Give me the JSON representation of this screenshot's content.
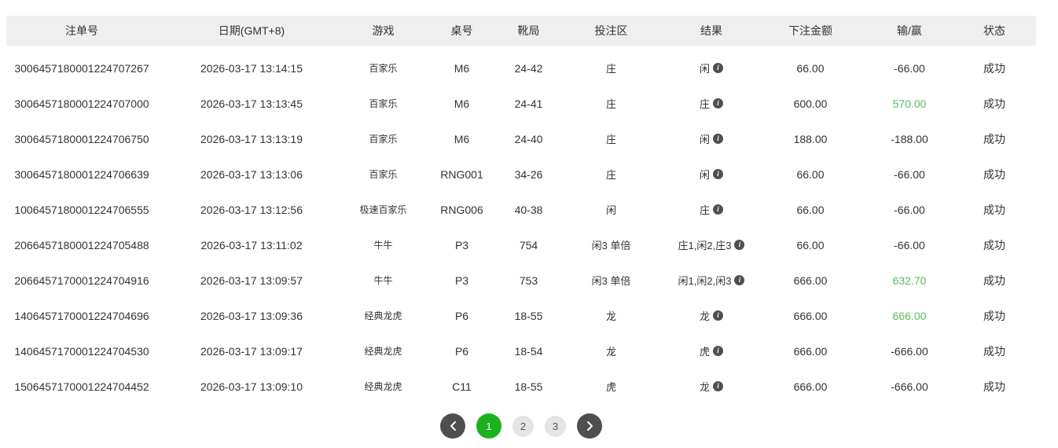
{
  "table": {
    "headers": [
      "注单号",
      "日期(GMT+8)",
      "游戏",
      "桌号",
      "靴局",
      "投注区",
      "结果",
      "下注金额",
      "输/赢",
      "状态"
    ],
    "rows": [
      {
        "id": "3006457180001224707267",
        "date": "2026-03-17 13:14:15",
        "game": "百家乐",
        "table": "M6",
        "shoe": "24-42",
        "zone": "庄",
        "result": "闲",
        "amount": "66.00",
        "winloss": "-66.00",
        "win": false,
        "status": "成功"
      },
      {
        "id": "3006457180001224707000",
        "date": "2026-03-17 13:13:45",
        "game": "百家乐",
        "table": "M6",
        "shoe": "24-41",
        "zone": "庄",
        "result": "庄",
        "amount": "600.00",
        "winloss": "570.00",
        "win": true,
        "status": "成功"
      },
      {
        "id": "3006457180001224706750",
        "date": "2026-03-17 13:13:19",
        "game": "百家乐",
        "table": "M6",
        "shoe": "24-40",
        "zone": "庄",
        "result": "闲",
        "amount": "188.00",
        "winloss": "-188.00",
        "win": false,
        "status": "成功"
      },
      {
        "id": "3006457180001224706639",
        "date": "2026-03-17 13:13:06",
        "game": "百家乐",
        "table": "RNG001",
        "shoe": "34-26",
        "zone": "庄",
        "result": "闲",
        "amount": "66.00",
        "winloss": "-66.00",
        "win": false,
        "status": "成功"
      },
      {
        "id": "1006457180001224706555",
        "date": "2026-03-17 13:12:56",
        "game": "极速百家乐",
        "table": "RNG006",
        "shoe": "40-38",
        "zone": "闲",
        "result": "庄",
        "amount": "66.00",
        "winloss": "-66.00",
        "win": false,
        "status": "成功"
      },
      {
        "id": "2066457180001224705488",
        "date": "2026-03-17 13:11:02",
        "game": "牛牛",
        "table": "P3",
        "shoe": "754",
        "zone": "闲3 单倍",
        "result": "庄1,闲2,庄3",
        "amount": "66.00",
        "winloss": "-66.00",
        "win": false,
        "status": "成功"
      },
      {
        "id": "2066457170001224704916",
        "date": "2026-03-17 13:09:57",
        "game": "牛牛",
        "table": "P3",
        "shoe": "753",
        "zone": "闲3 单倍",
        "result": "闲1,闲2,闲3",
        "amount": "666.00",
        "winloss": "632.70",
        "win": true,
        "status": "成功"
      },
      {
        "id": "1406457170001224704696",
        "date": "2026-03-17 13:09:36",
        "game": "经典龙虎",
        "table": "P6",
        "shoe": "18-55",
        "zone": "龙",
        "result": "龙",
        "amount": "666.00",
        "winloss": "666.00",
        "win": true,
        "status": "成功"
      },
      {
        "id": "1406457170001224704530",
        "date": "2026-03-17 13:09:17",
        "game": "经典龙虎",
        "table": "P6",
        "shoe": "18-54",
        "zone": "龙",
        "result": "虎",
        "amount": "666.00",
        "winloss": "-666.00",
        "win": false,
        "status": "成功"
      },
      {
        "id": "1506457170001224704452",
        "date": "2026-03-17 13:09:10",
        "game": "经典龙虎",
        "table": "C11",
        "shoe": "18-55",
        "zone": "虎",
        "result": "龙",
        "amount": "666.00",
        "winloss": "-666.00",
        "win": false,
        "status": "成功"
      }
    ]
  },
  "icons": {
    "result_info": "i"
  },
  "pagination": {
    "pages": [
      "1",
      "2",
      "3"
    ],
    "active_page": "1"
  },
  "colors": {
    "win_green": "#5cb85c",
    "active_page_green": "#1bb21b",
    "header_bg": "#efefef",
    "circle_dark": "#4f4f4f"
  }
}
